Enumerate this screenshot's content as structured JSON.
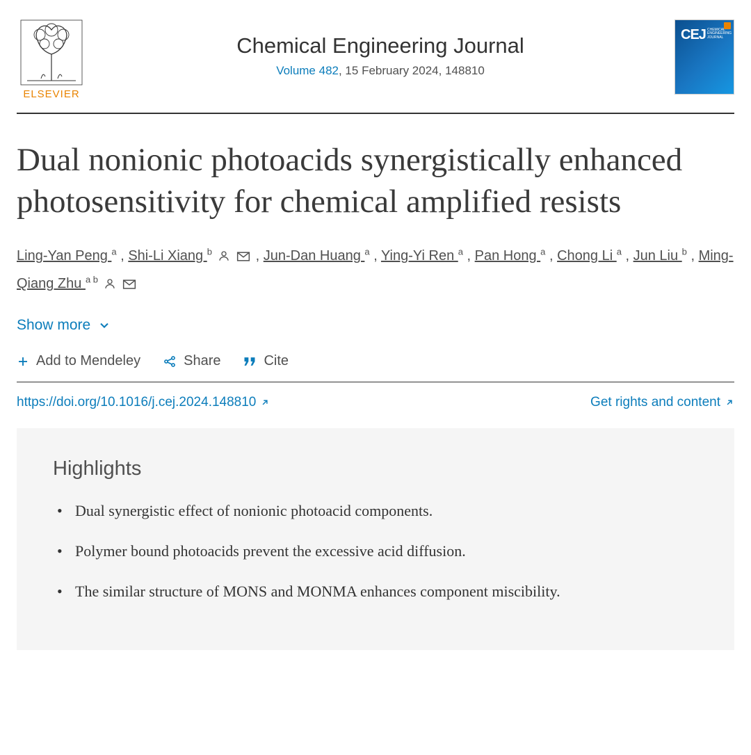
{
  "publisher": {
    "name": "ELSEVIER"
  },
  "journal": {
    "title": "Chemical Engineering Journal",
    "volume_link": "Volume 482",
    "issue_text": ", 15 February 2024, 148810",
    "cover_badge": "CEJ",
    "cover_sub1": "CHEMICAL",
    "cover_sub2": "ENGINEERING",
    "cover_sub3": "JOURNAL"
  },
  "article": {
    "title": "Dual nonionic photoacids synergistically enhanced photosensitivity for chemical amplified resists",
    "doi_url": "https://doi.org/10.1016/j.cej.2024.148810",
    "rights_label": "Get rights and content"
  },
  "authors": [
    {
      "name": "Ling-Yan Peng",
      "aff": "a",
      "person": false,
      "mail": false
    },
    {
      "name": "Shi-Li Xiang",
      "aff": "b",
      "person": true,
      "mail": true
    },
    {
      "name": "Jun-Dan Huang",
      "aff": "a",
      "person": false,
      "mail": false
    },
    {
      "name": "Ying-Yi Ren",
      "aff": "a",
      "person": false,
      "mail": false
    },
    {
      "name": "Pan Hong",
      "aff": "a",
      "person": false,
      "mail": false
    },
    {
      "name": "Chong Li",
      "aff": "a",
      "person": false,
      "mail": false
    },
    {
      "name": "Jun Liu",
      "aff": "b",
      "person": false,
      "mail": false
    },
    {
      "name": "Ming-Qiang Zhu",
      "aff": "a b",
      "person": true,
      "mail": true
    }
  ],
  "ui": {
    "show_more": "Show more",
    "add_mendeley": "Add to Mendeley",
    "share": "Share",
    "cite": "Cite"
  },
  "highlights": {
    "heading": "Highlights",
    "items": [
      "Dual synergistic effect of nonionic photoacid components.",
      "Polymer bound photoacids prevent the excessive acid diffusion.",
      "The similar structure of MONS and MONMA enhances component miscibility."
    ]
  },
  "colors": {
    "link": "#0c7dbb",
    "brand_orange": "#e98300",
    "text_grey": "#505050",
    "bg_highlight": "#f5f5f5"
  }
}
